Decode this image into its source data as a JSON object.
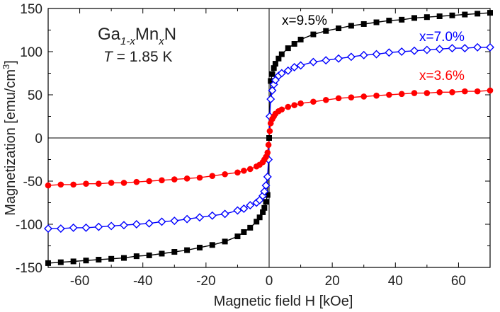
{
  "chart_data": {
    "type": "scatter",
    "xlabel": "Magnetic field H [kOe]",
    "ylabel_main": "Magnetization [emu/cm",
    "ylabel_sup": "3",
    "ylabel_end": "]",
    "xlim": [
      -70,
      70
    ],
    "ylim": [
      -150,
      150
    ],
    "x_ticks": [
      -60,
      -40,
      -20,
      0,
      20,
      40,
      60
    ],
    "y_ticks": [
      -150,
      -100,
      -50,
      0,
      50,
      100,
      150
    ],
    "grid": false,
    "legend": "inline labels at right",
    "annotation": {
      "compound": {
        "base1": "Ga",
        "sub1": "1-x",
        "base2": "Mn",
        "sub2": "x",
        "base3": "N"
      },
      "temperature": {
        "symbol": "T",
        "text": " = 1.85 K"
      }
    },
    "series": [
      {
        "name": "x=9.5%",
        "color": "#000000",
        "marker": "square",
        "x": [
          -70,
          -66,
          -62,
          -58,
          -54,
          -50,
          -46,
          -42,
          -38,
          -34,
          -30,
          -26,
          -22,
          -18,
          -14,
          -10,
          -8,
          -6,
          -4,
          -3,
          -2,
          -1.5,
          -1,
          -0.5,
          0,
          0.5,
          1,
          1.5,
          2,
          3,
          4,
          6,
          8,
          10,
          14,
          18,
          22,
          26,
          30,
          34,
          38,
          42,
          46,
          50,
          54,
          58,
          62,
          66,
          70
        ],
        "y": [
          -145,
          -144,
          -143,
          -142,
          -141,
          -140,
          -139,
          -137,
          -136,
          -134,
          -132,
          -130,
          -127,
          -124,
          -120,
          -114,
          -109,
          -104,
          -97,
          -92,
          -86,
          -81,
          -74,
          -66,
          0,
          66,
          74,
          81,
          86,
          92,
          97,
          104,
          109,
          114,
          120,
          124,
          127,
          130,
          132,
          134,
          136,
          137,
          139,
          140,
          141,
          142,
          143,
          144,
          145
        ]
      },
      {
        "name": "x=7.0%",
        "color": "#0000ff",
        "marker": "diamond",
        "x": [
          -70,
          -66,
          -62,
          -58,
          -54,
          -50,
          -46,
          -42,
          -38,
          -34,
          -30,
          -26,
          -22,
          -18,
          -14,
          -10,
          -8,
          -6,
          -4,
          -3,
          -2,
          -1.5,
          -1,
          -0.5,
          -0.2,
          0.2,
          0.5,
          1,
          1.5,
          2,
          3,
          4,
          6,
          8,
          10,
          14,
          18,
          22,
          26,
          30,
          34,
          38,
          42,
          46,
          50,
          54,
          58,
          62,
          66,
          70
        ],
        "y": [
          -105,
          -105,
          -104,
          -104,
          -103,
          -102,
          -101,
          -100,
          -99,
          -97,
          -96,
          -94,
          -92,
          -90,
          -88,
          -84,
          -82,
          -78,
          -75,
          -72,
          -67,
          -62,
          -55,
          -45,
          -25,
          25,
          45,
          55,
          62,
          67,
          72,
          75,
          78,
          82,
          84,
          88,
          90,
          92,
          94,
          96,
          97,
          99,
          100,
          101,
          102,
          103,
          104,
          104,
          105,
          105
        ]
      },
      {
        "name": "x=3.6%",
        "color": "#ff0000",
        "marker": "circle",
        "x": [
          -70,
          -66,
          -62,
          -58,
          -54,
          -50,
          -46,
          -42,
          -38,
          -34,
          -30,
          -26,
          -22,
          -18,
          -14,
          -10,
          -8,
          -6,
          -4,
          -3,
          -2,
          -1.5,
          -1,
          -0.5,
          -0.2,
          0.2,
          0.5,
          1,
          1.5,
          2,
          3,
          4,
          6,
          8,
          10,
          14,
          18,
          22,
          26,
          30,
          34,
          38,
          42,
          46,
          50,
          54,
          58,
          62,
          66,
          70
        ],
        "y": [
          -55,
          -54,
          -54,
          -53,
          -53,
          -52,
          -52,
          -51,
          -50,
          -49,
          -48,
          -47,
          -46,
          -44,
          -42,
          -40,
          -38,
          -36,
          -33,
          -31,
          -28,
          -25,
          -22,
          -17,
          -8,
          8,
          17,
          22,
          25,
          28,
          31,
          33,
          36,
          38,
          40,
          42,
          44,
          46,
          47,
          48,
          49,
          50,
          51,
          52,
          52,
          53,
          53,
          54,
          54,
          55
        ]
      }
    ]
  }
}
